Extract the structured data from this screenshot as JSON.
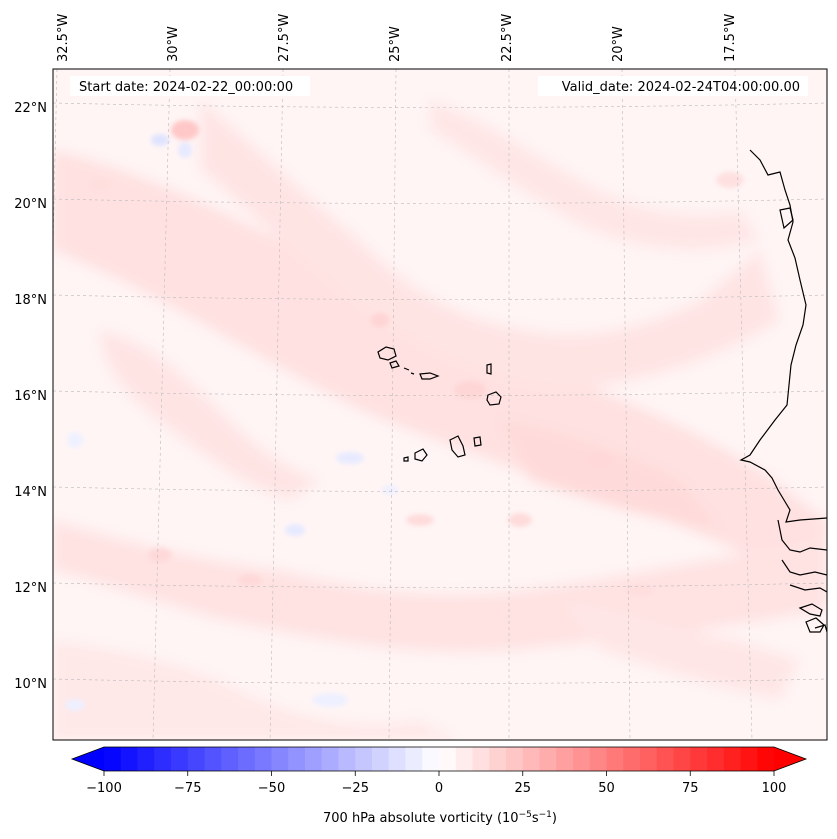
{
  "map": {
    "start_label": "Start date: 2024-02-22_00:00:00",
    "valid_label": "Valid_date: 2024-02-24T04:00:00.00",
    "lon_labels": [
      "32.5°W",
      "30°W",
      "27.5°W",
      "25°W",
      "22.5°W",
      "20°W",
      "17.5°W"
    ],
    "lat_labels": [
      "22°N",
      "20°N",
      "18°N",
      "16°N",
      "14°N",
      "12°N",
      "10°N"
    ],
    "colors": {
      "background": "#fff5f5",
      "pos_light": "#ffe3e3",
      "pos_mid": "#ffd2d2",
      "neg_light": "#eef0ff",
      "coast": "#000000",
      "grid": "#bbbbbb"
    }
  },
  "colorbar": {
    "label_prefix": "700 hPa absolute vorticity (10",
    "label_exp1": "−5",
    "label_mid": "s",
    "label_exp2": "−1",
    "label_suffix": ")",
    "min": -100,
    "max": 100,
    "ticks": [
      "−100",
      "−75",
      "−50",
      "−25",
      "0",
      "25",
      "50",
      "75",
      "100"
    ],
    "color_low": "#0000ff",
    "color_mid": "#ffffff",
    "color_high": "#ff0000"
  }
}
